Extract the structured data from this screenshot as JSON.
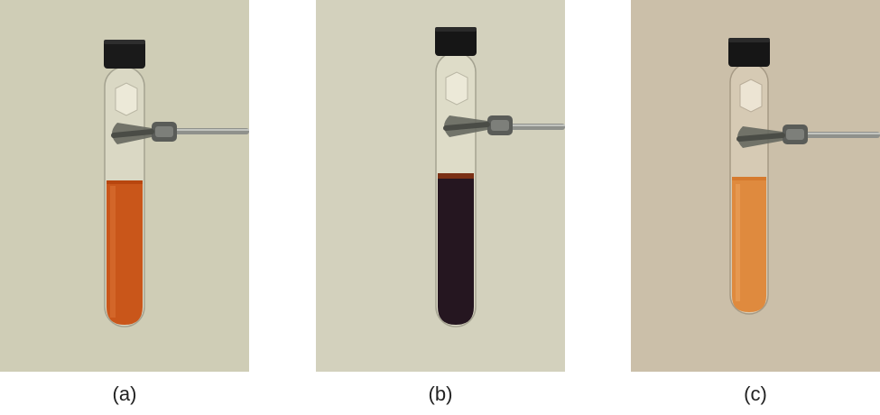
{
  "panels": [
    {
      "id": "a",
      "caption": "(a)",
      "background": "#cfcdb6",
      "liquid_color": "#c9561a",
      "liquid_top": "#b8460f",
      "cap_color": "#1a1a1a"
    },
    {
      "id": "b",
      "caption": "(b)",
      "background": "#d3d1bd",
      "liquid_color": "#251620",
      "liquid_top": "#7a3015",
      "cap_color": "#161616"
    },
    {
      "id": "c",
      "caption": "(c)",
      "background": "#cbbfa9",
      "liquid_color": "#df8a3e",
      "liquid_top": "#d67a2e",
      "cap_color": "#161616"
    }
  ]
}
